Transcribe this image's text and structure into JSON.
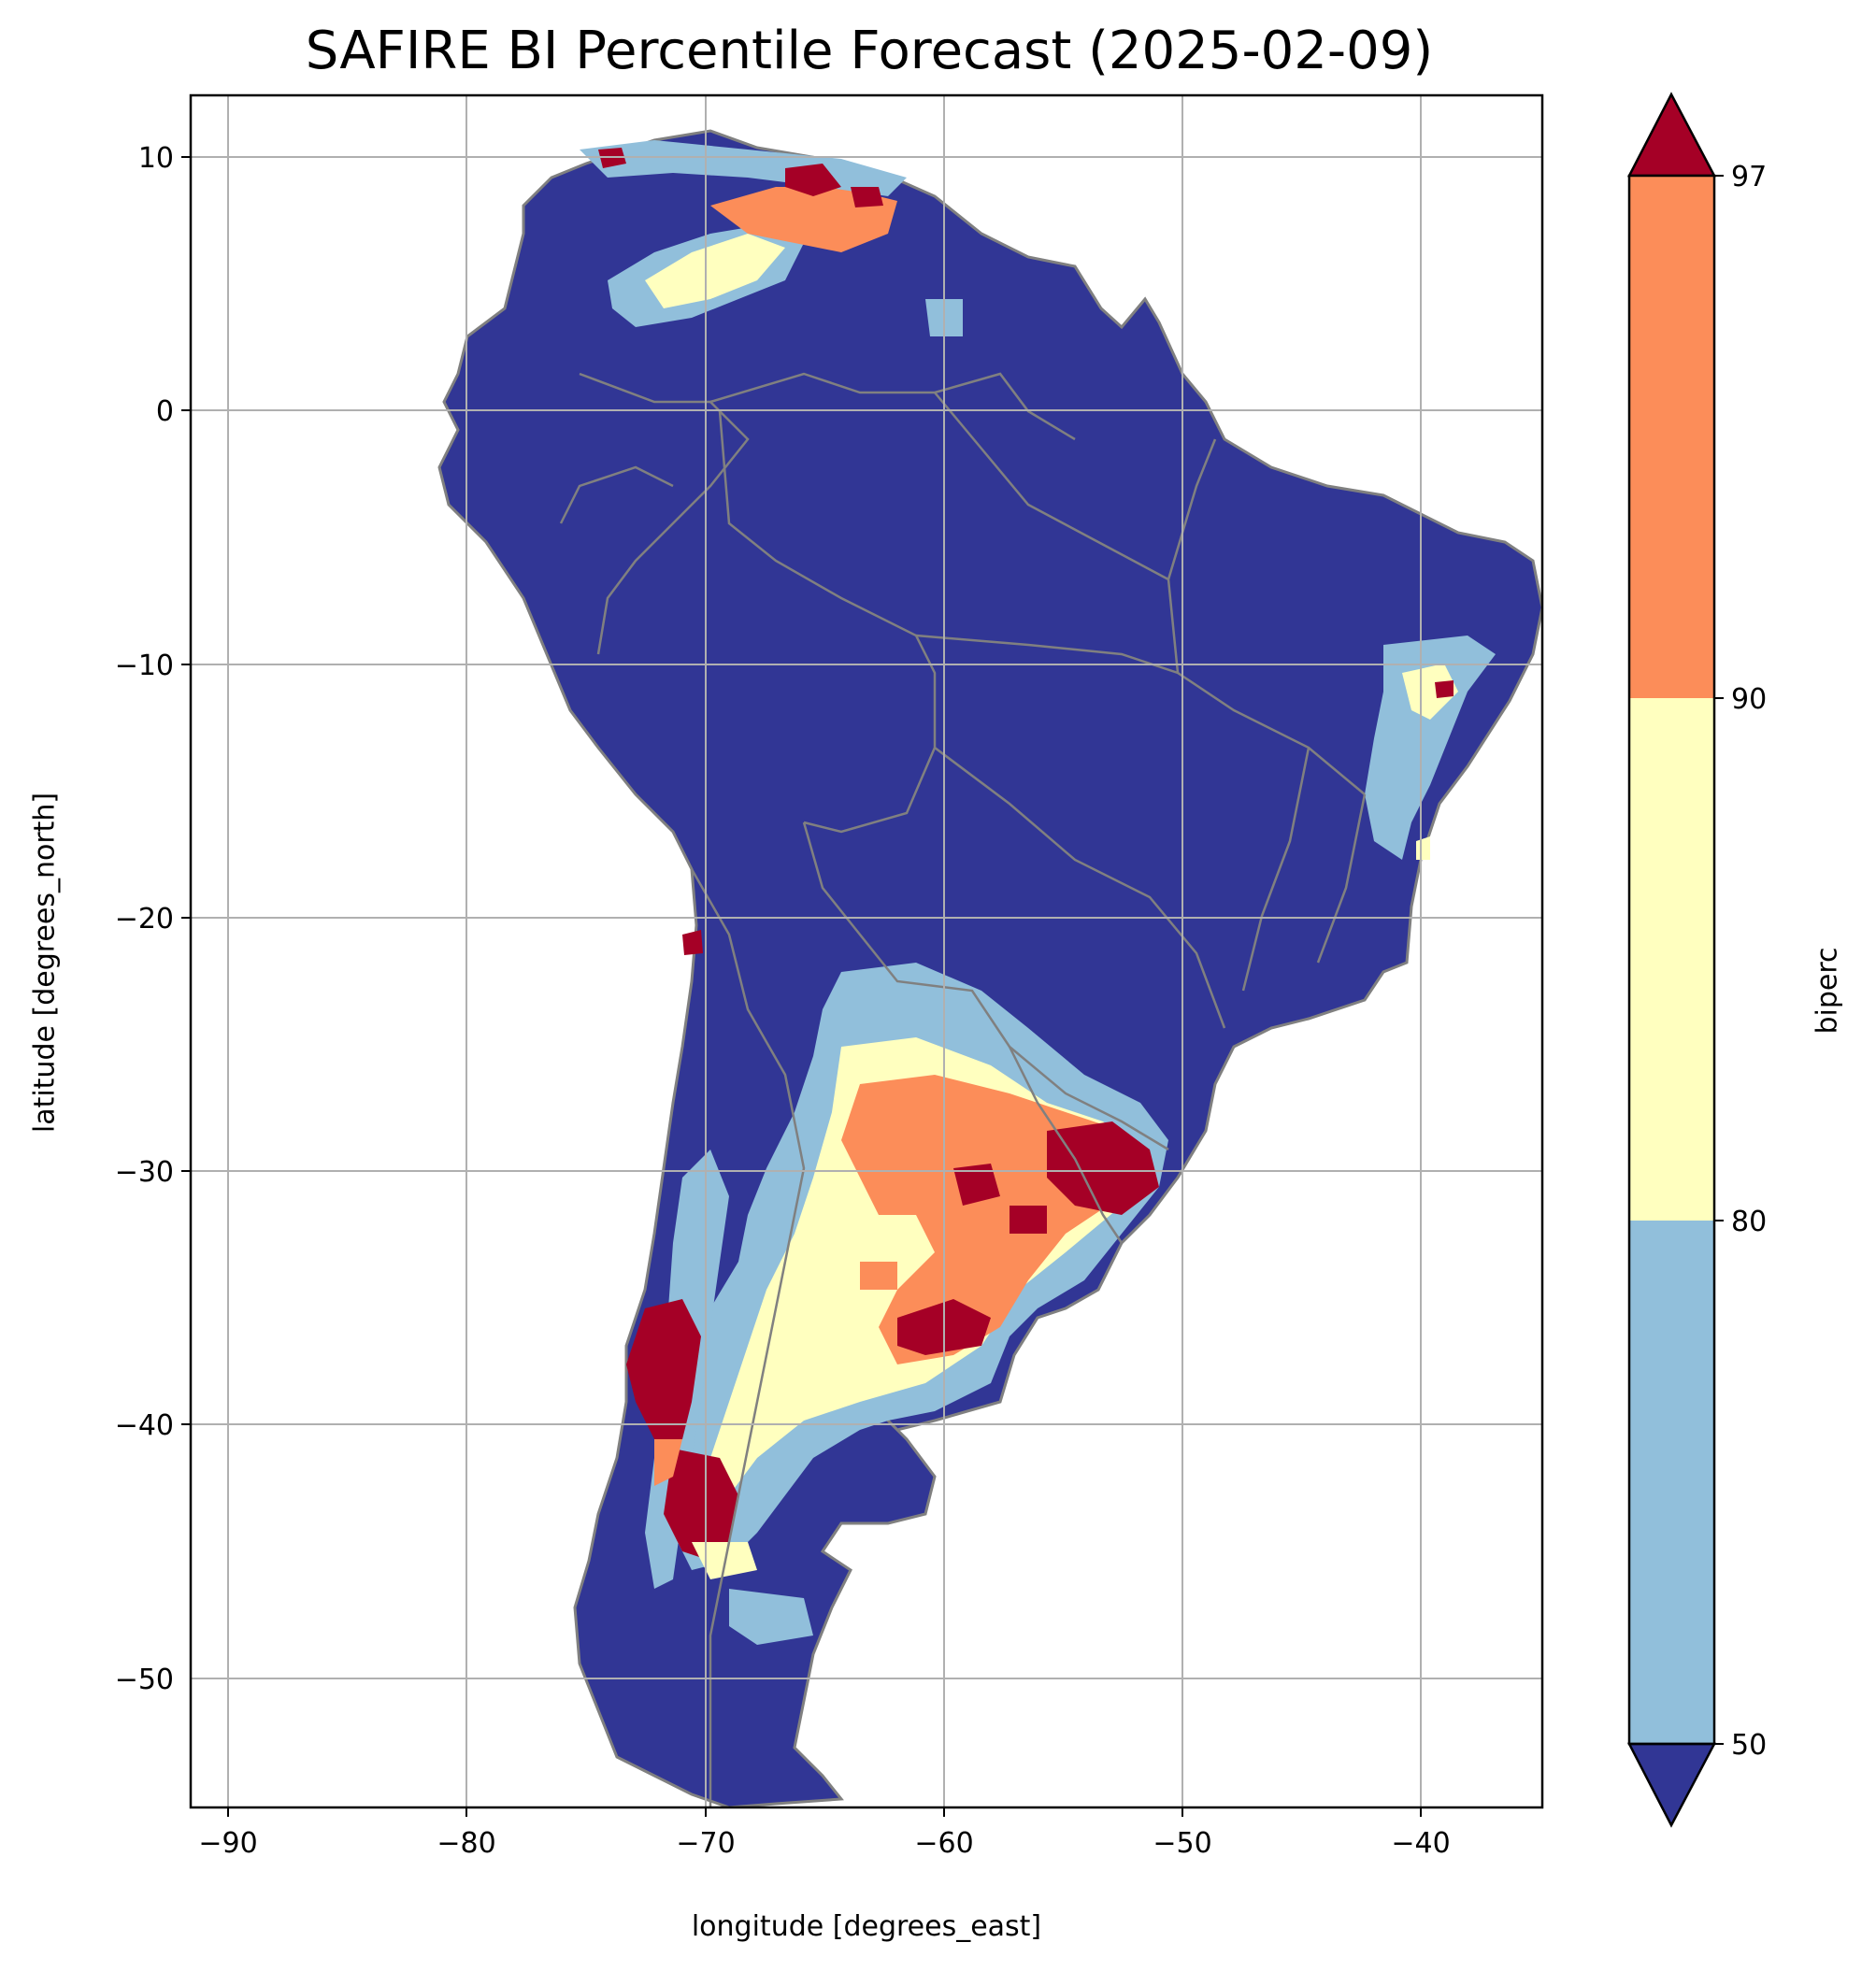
{
  "title": "SAFIRE BI Percentile Forecast (2025-02-09)",
  "xlabel": "longitude [degrees_east]",
  "ylabel": "latitude [degrees_north]",
  "colorbar": {
    "label": "biperc",
    "ticks": [
      "50",
      "80",
      "90",
      "97"
    ],
    "bins": [
      {
        "range": "<50",
        "color": "#313695"
      },
      {
        "range": "50-80",
        "color": "#91bfdb"
      },
      {
        "range": "80-90",
        "color": "#ffffbf"
      },
      {
        "range": "90-97",
        "color": "#fc8d59"
      },
      {
        "range": ">97",
        "color": "#a50026"
      }
    ],
    "extend": "both"
  },
  "axes": {
    "x_ticks": [
      "−90",
      "−80",
      "−70",
      "−60",
      "−50",
      "−40"
    ],
    "y_ticks": [
      "10",
      "0",
      "−10",
      "−20",
      "−30",
      "−40",
      "−50"
    ],
    "xlim": [
      -91.5,
      -35
    ],
    "ylim": [
      -55.9,
      12.4
    ],
    "grid": true,
    "border_color": "#808080"
  },
  "chart_data": {
    "type": "heatmap",
    "variable": "biperc",
    "region": "South America",
    "date": "2025-02-09",
    "dominant_class": "<50",
    "hotspots_above_97": [
      {
        "lon": -67,
        "lat": 9
      },
      {
        "lon": -55,
        "lat": -30
      },
      {
        "lon": -60,
        "lat": -31
      },
      {
        "lon": -58,
        "lat": -36
      },
      {
        "lon": -72,
        "lat": -38
      },
      {
        "lon": -70,
        "lat": -43
      },
      {
        "lon": -39,
        "lat": -11
      },
      {
        "lon": -71,
        "lat": -18
      }
    ]
  }
}
